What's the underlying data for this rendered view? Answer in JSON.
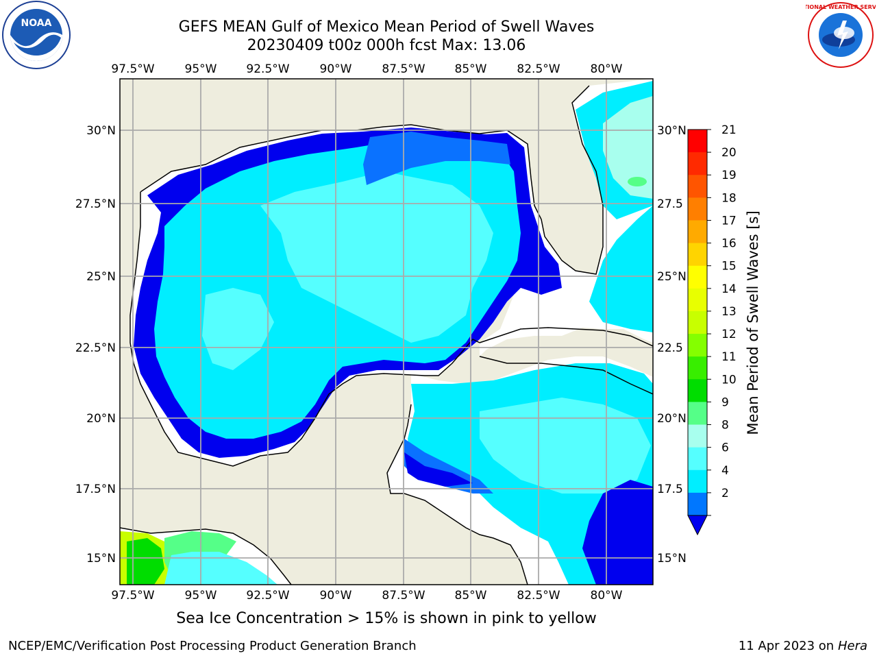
{
  "title_line1": "GEFS MEAN Gulf of Mexico Mean Period of Swell Waves",
  "title_line2": "20230409 t00z 000h fcst   Max: 13.06",
  "longitude_labels": [
    "97.5°W",
    "95°W",
    "92.5°W",
    "90°W",
    "87.5°W",
    "85°W",
    "82.5°W",
    "80°W"
  ],
  "latitude_labels_left": [
    "30°N",
    "27.5°N",
    "25°N",
    "22.5°N",
    "20°N",
    "17.5°N",
    "15°N"
  ],
  "latitude_labels_right": [
    "30°N",
    "27.5",
    "25°N",
    "22.5",
    "20°N",
    "17.5",
    "15°N"
  ],
  "colorbar": {
    "label": "Mean Period of Swell Waves [s]",
    "ticks": [
      "21",
      "20",
      "19",
      "18",
      "17",
      "16",
      "15",
      "14",
      "13",
      "12",
      "11",
      "10",
      "9",
      "8",
      "6",
      "4",
      "2"
    ],
    "colors_top_to_bottom": [
      "#ff0000",
      "#ff2a00",
      "#ff5500",
      "#ff7f00",
      "#ffaa00",
      "#ffd400",
      "#ffff00",
      "#e8ff00",
      "#c8ff00",
      "#84ff00",
      "#38ee00",
      "#00dd00",
      "#55ff88",
      "#a8ffee",
      "#55ffff",
      "#00eeff",
      "#0077ff"
    ],
    "extend_color": "#0000ee"
  },
  "colors": {
    "land": "#eeedde",
    "water_missing": "#ffffff",
    "deep_blue": "#0000ee",
    "mid_blue": "#0a72ff",
    "cyan": "#00eeff",
    "light_cyan": "#55ffff",
    "pale_cyan": "#a8ffee",
    "green": "#55ff88",
    "bright_green": "#00dd00",
    "yellow_green": "#c8ff00",
    "grid": "#aaaaaa"
  },
  "footer_note": "Sea Ice Concentration > 15% is shown in pink to yellow",
  "credit_left": "NCEP/EMC/Verification Post Processing Product Generation Branch",
  "credit_date": "11 Apr 2023 on ",
  "credit_machine": "Hera",
  "logos": {
    "left": "NOAA",
    "right": "NATIONAL WEATHER SERVICE"
  }
}
